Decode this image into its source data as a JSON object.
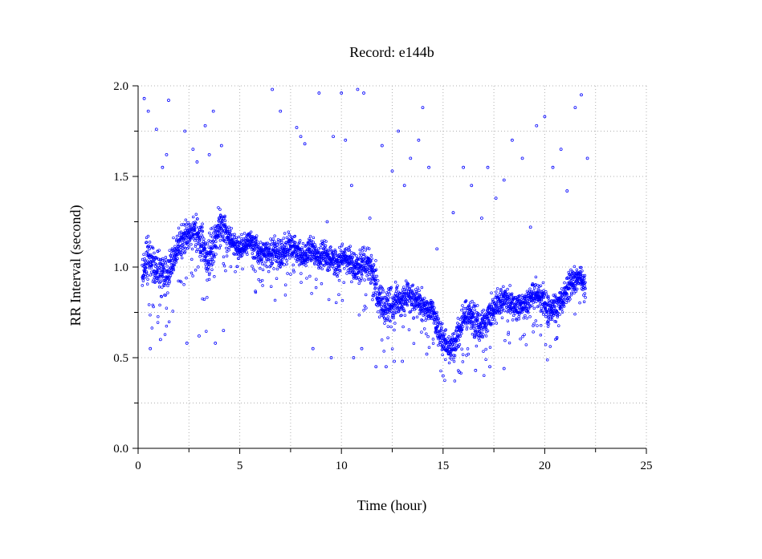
{
  "chart_data": {
    "type": "scatter",
    "title": "Record:  e144b",
    "xlabel": "Time (hour)",
    "ylabel": "RR Interval (second)",
    "xlim": [
      0,
      25
    ],
    "ylim": [
      0.0,
      2.0
    ],
    "x_ticks": [
      "0",
      "5",
      "10",
      "15",
      "20",
      "25"
    ],
    "x_tick_values": [
      0,
      5,
      10,
      15,
      20,
      25
    ],
    "y_ticks": [
      "0.0",
      "0.5",
      "1.0",
      "1.5",
      "2.0"
    ],
    "y_tick_values": [
      0.0,
      0.5,
      1.0,
      1.5,
      2.0
    ],
    "grid": "dotted",
    "marker": "open-circle",
    "series_color": "#0000ff",
    "series": [
      {
        "x": [
          0.2,
          0.5,
          0.8,
          1.0,
          1.3,
          1.6,
          1.9,
          2.2,
          2.5,
          2.8,
          3.1,
          3.4,
          3.7,
          4.0,
          4.3,
          4.6,
          4.9,
          5.2,
          5.5,
          5.8,
          6.1,
          6.4,
          6.7,
          7.0,
          7.3,
          7.6,
          7.9,
          8.2,
          8.5,
          8.8,
          9.1,
          9.4,
          9.7,
          10.0,
          10.3,
          10.6,
          10.9,
          11.2,
          11.5,
          11.8,
          12.1,
          12.4,
          12.7,
          13.0,
          13.3,
          13.6,
          13.9,
          14.2,
          14.5,
          14.8,
          15.1,
          15.4,
          15.7,
          16.0,
          16.3,
          16.6,
          16.9,
          17.2,
          17.5,
          17.8,
          18.1,
          18.4,
          18.7,
          19.0,
          19.3,
          19.6,
          19.9,
          20.2,
          20.5,
          20.8,
          21.1,
          21.4,
          21.7,
          22.0
        ],
        "y": [
          0.95,
          1.05,
          1.0,
          0.98,
          0.95,
          1.0,
          1.1,
          1.15,
          1.18,
          1.2,
          1.15,
          1.05,
          1.1,
          1.25,
          1.2,
          1.15,
          1.1,
          1.12,
          1.15,
          1.1,
          1.05,
          1.08,
          1.1,
          1.05,
          1.1,
          1.12,
          1.08,
          1.05,
          1.1,
          1.05,
          1.08,
          1.05,
          1.02,
          1.05,
          1.05,
          1.0,
          1.0,
          1.02,
          0.98,
          0.85,
          0.78,
          0.8,
          0.82,
          0.8,
          0.85,
          0.82,
          0.8,
          0.78,
          0.75,
          0.65,
          0.58,
          0.55,
          0.6,
          0.72,
          0.75,
          0.7,
          0.68,
          0.72,
          0.78,
          0.8,
          0.82,
          0.8,
          0.78,
          0.8,
          0.82,
          0.85,
          0.82,
          0.75,
          0.78,
          0.8,
          0.88,
          0.92,
          0.95,
          0.9
        ],
        "spread": [
          0.12,
          0.15,
          0.15,
          0.18,
          0.15,
          0.12,
          0.1,
          0.12,
          0.1,
          0.1,
          0.15,
          0.18,
          0.15,
          0.1,
          0.1,
          0.08,
          0.08,
          0.08,
          0.08,
          0.1,
          0.1,
          0.12,
          0.12,
          0.12,
          0.1,
          0.08,
          0.1,
          0.1,
          0.1,
          0.1,
          0.1,
          0.1,
          0.1,
          0.1,
          0.08,
          0.1,
          0.12,
          0.1,
          0.12,
          0.15,
          0.12,
          0.12,
          0.12,
          0.12,
          0.12,
          0.12,
          0.12,
          0.1,
          0.1,
          0.12,
          0.1,
          0.08,
          0.1,
          0.12,
          0.12,
          0.12,
          0.12,
          0.12,
          0.1,
          0.1,
          0.1,
          0.1,
          0.1,
          0.1,
          0.1,
          0.1,
          0.1,
          0.12,
          0.1,
          0.1,
          0.1,
          0.1,
          0.08,
          0.1
        ],
        "outliers_x": [
          0.3,
          0.5,
          0.9,
          1.2,
          1.4,
          1.5,
          2.3,
          2.7,
          2.9,
          3.3,
          3.5,
          3.7,
          4.1,
          6.6,
          7.0,
          7.8,
          8.0,
          8.2,
          8.9,
          9.3,
          9.6,
          10.0,
          10.2,
          10.5,
          10.8,
          11.1,
          11.4,
          12.0,
          12.5,
          12.8,
          13.1,
          13.4,
          13.8,
          14.0,
          14.3,
          14.7,
          15.5,
          16.0,
          16.4,
          16.9,
          17.2,
          17.6,
          18.0,
          18.4,
          18.9,
          19.3,
          19.6,
          20.0,
          20.4,
          20.8,
          21.1,
          21.5,
          21.8,
          22.1,
          0.6,
          1.1,
          3.0,
          3.8,
          9.5,
          10.6,
          11.0,
          12.2,
          13.0,
          14.2,
          15.0,
          15.8,
          16.6,
          17.3,
          18.0,
          2.4,
          4.2,
          8.6,
          11.7,
          12.6
        ],
        "outliers_y": [
          1.93,
          1.86,
          1.76,
          1.55,
          1.62,
          1.92,
          1.75,
          1.65,
          1.58,
          1.78,
          1.62,
          1.86,
          1.67,
          1.98,
          1.86,
          1.77,
          1.72,
          1.68,
          1.96,
          1.25,
          1.72,
          1.96,
          1.7,
          1.45,
          1.98,
          1.96,
          1.27,
          1.67,
          1.53,
          1.75,
          1.45,
          1.6,
          1.7,
          1.88,
          1.55,
          1.1,
          1.3,
          1.55,
          1.45,
          1.27,
          1.55,
          1.38,
          1.48,
          1.7,
          1.6,
          1.22,
          1.78,
          1.83,
          1.55,
          1.65,
          1.42,
          1.88,
          1.95,
          1.6,
          0.55,
          0.6,
          0.62,
          0.58,
          0.5,
          0.5,
          0.55,
          0.45,
          0.48,
          0.52,
          0.4,
          0.42,
          0.43,
          0.45,
          0.44,
          0.58,
          0.65,
          0.55,
          0.45,
          0.48
        ]
      }
    ]
  }
}
